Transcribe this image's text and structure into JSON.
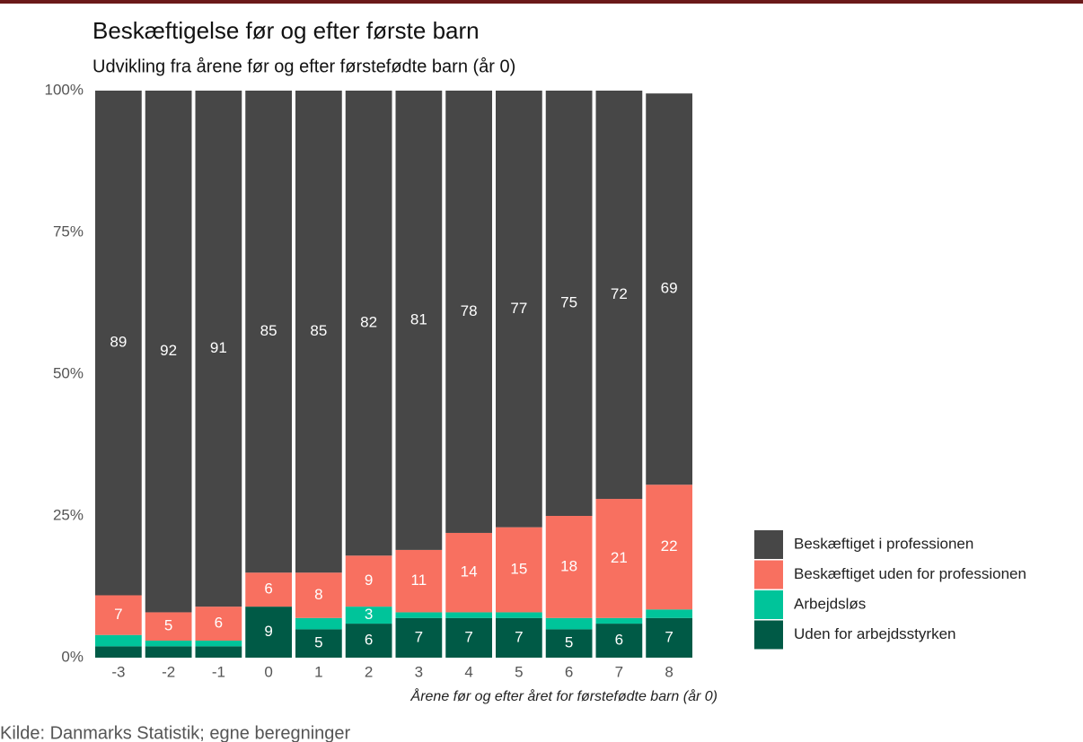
{
  "chart_data": {
    "type": "stacked_bar",
    "title": "Beskæftigelse før og efter første barn",
    "subtitle": "Udvikling fra årene før og efter førstefødte barn (år 0)",
    "x_label": "Årene før og efter året for førstefødte barn (år 0)",
    "source": "Kilde: Danmarks Statistik; egne beregninger",
    "categories": [
      "-3",
      "-2",
      "-1",
      "0",
      "1",
      "2",
      "3",
      "4",
      "5",
      "6",
      "7",
      "8"
    ],
    "series": [
      {
        "name": "Uden for arbejdsstyrken",
        "color": "#005a46",
        "values": [
          2,
          2,
          2,
          9,
          5,
          6,
          7,
          7,
          7,
          5,
          6,
          7
        ]
      },
      {
        "name": "Arbejdsløs",
        "color": "#00c49a",
        "values": [
          2,
          1,
          1,
          0,
          2,
          3,
          1,
          1,
          1,
          2,
          1,
          1.5
        ]
      },
      {
        "name": "Beskæftiget uden for professionen",
        "color": "#f87060",
        "values": [
          7,
          5,
          6,
          6,
          8,
          9,
          11,
          14,
          15,
          18,
          21,
          22
        ]
      },
      {
        "name": "Beskæftiget i professionen",
        "color": "#474747",
        "values": [
          89,
          92,
          91,
          85,
          85,
          82,
          81,
          78,
          77,
          75,
          72,
          69
        ]
      }
    ],
    "ylim": [
      0,
      100
    ],
    "yticks": [
      {
        "value": 0,
        "label": "0%"
      },
      {
        "value": 25,
        "label": "25%"
      },
      {
        "value": 50,
        "label": "50%"
      },
      {
        "value": 75,
        "label": "75%"
      },
      {
        "value": 100,
        "label": "100%"
      }
    ]
  }
}
